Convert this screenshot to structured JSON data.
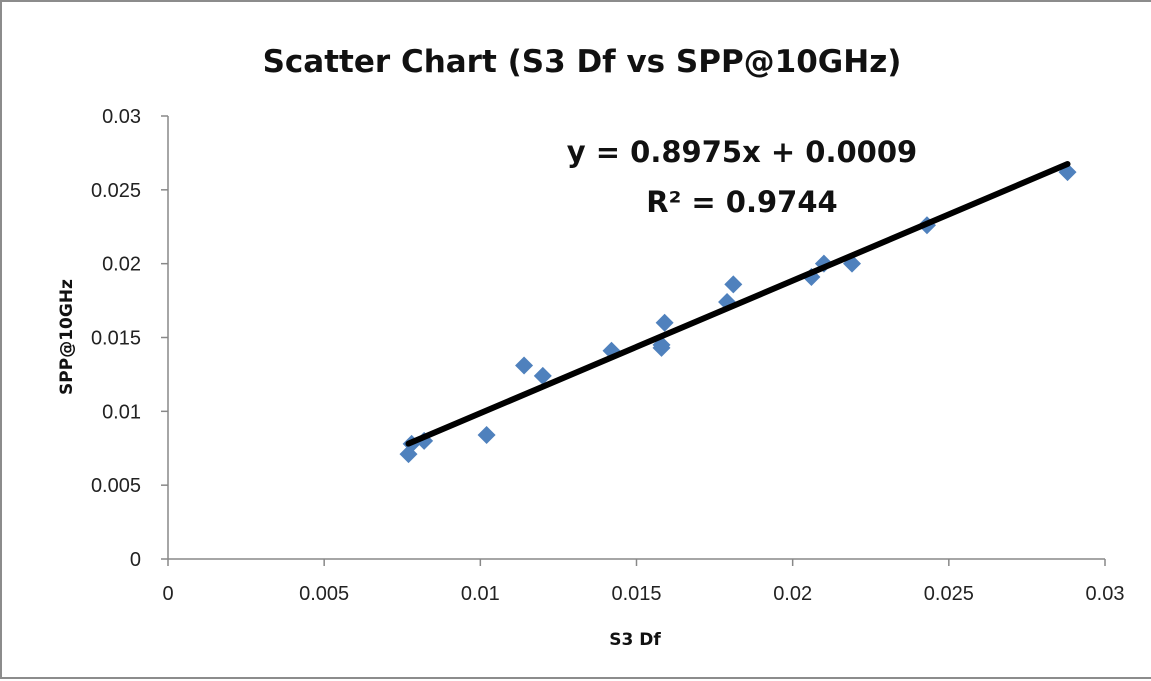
{
  "chart_data": {
    "type": "scatter",
    "title": "Scatter Chart (S3 Df vs SPP@10GHz)",
    "xlabel": "S3 Df",
    "ylabel": "SPP@10GHz",
    "xlim": [
      0,
      0.03
    ],
    "ylim": [
      0,
      0.03
    ],
    "xticks": [
      "0",
      "0.005",
      "0.01",
      "0.015",
      "0.02",
      "0.025",
      "0.03"
    ],
    "yticks": [
      "0",
      "0.005",
      "0.01",
      "0.015",
      "0.02",
      "0.025",
      "0.03"
    ],
    "grid": false,
    "legend": "none",
    "marker": "diamond",
    "series": [
      {
        "color": "#4f81bd",
        "points": [
          [
            0.0077,
            0.0071
          ],
          [
            0.0078,
            0.0078
          ],
          [
            0.0082,
            0.008
          ],
          [
            0.0102,
            0.0084
          ],
          [
            0.0114,
            0.0131
          ],
          [
            0.012,
            0.0124
          ],
          [
            0.0142,
            0.0141
          ],
          [
            0.0158,
            0.0143
          ],
          [
            0.0158,
            0.0145
          ],
          [
            0.0159,
            0.016
          ],
          [
            0.0179,
            0.0174
          ],
          [
            0.0181,
            0.0186
          ],
          [
            0.0206,
            0.0191
          ],
          [
            0.021,
            0.02
          ],
          [
            0.0219,
            0.02
          ],
          [
            0.0243,
            0.0226
          ],
          [
            0.0288,
            0.0262
          ]
        ]
      }
    ],
    "trendline": {
      "type": "linear",
      "slope": 0.8975,
      "intercept": 0.0009,
      "x_range": [
        0.0077,
        0.0288
      ],
      "color": "#000000",
      "equation_text": "y = 0.8975x + 0.0009",
      "r2_text": "R² = 0.9744"
    }
  }
}
